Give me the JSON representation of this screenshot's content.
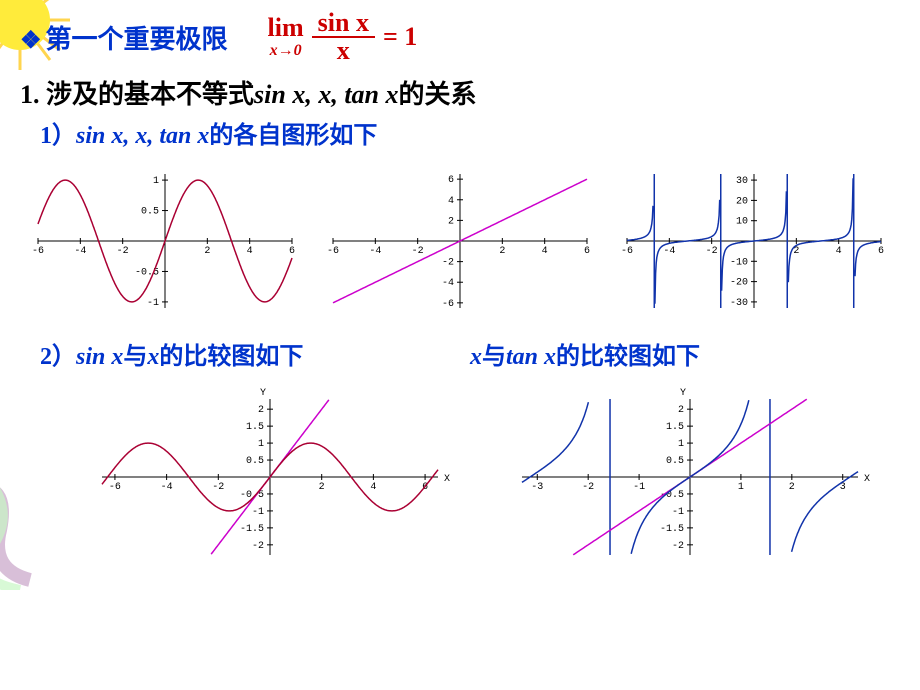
{
  "header": {
    "bullet": "❖",
    "title": "第一个重要极限",
    "formula": {
      "lim": "lim",
      "sub": "x→0",
      "num": "sin x",
      "den": "x",
      "eq": "= 1"
    }
  },
  "sec1": {
    "prefix": "1. 涉及的基本不等式",
    "mid": "sin x, x, tan x",
    "suffix": "的关系"
  },
  "sub1": {
    "prefix": "1）",
    "mid": "sin x, x, tan x",
    "suffix": "的各自图形如下"
  },
  "sub2a": {
    "prefix": "2）",
    "a": "sin x",
    "mid1": "与",
    "b": "x",
    "suffix": "的比较图如下"
  },
  "sub2b": {
    "a": "x",
    "mid1": "与",
    "b": "tan x",
    "suffix": "的比较图如下"
  },
  "charts": {
    "sin": {
      "type": "line",
      "xlim": [
        -6,
        6
      ],
      "ylim": [
        -1.1,
        1.1
      ],
      "xticks": [
        -6,
        -4,
        -2,
        2,
        4,
        6
      ],
      "yticks": [
        -1,
        -0.5,
        0.5,
        1
      ],
      "series_color": "#aa0033",
      "background": "#ffffff"
    },
    "identity": {
      "type": "line",
      "xlim": [
        -6,
        6
      ],
      "ylim": [
        -6.5,
        6.5
      ],
      "xticks": [
        -6,
        -4,
        -2,
        2,
        4,
        6
      ],
      "yticks": [
        -6,
        -4,
        -2,
        2,
        4,
        6
      ],
      "series_color": "#cc00cc",
      "background": "#ffffff"
    },
    "tan": {
      "type": "line",
      "xlim": [
        -6,
        6
      ],
      "ylim": [
        -33,
        33
      ],
      "xticks": [
        -6,
        -4,
        -2,
        2,
        4,
        6
      ],
      "yticks": [
        -30,
        -20,
        -10,
        10,
        20,
        30
      ],
      "series_color": "#1133aa",
      "asymptotes_x": [
        -4.712,
        -1.571,
        1.571,
        4.712
      ],
      "background": "#ffffff"
    },
    "sin_vs_x": {
      "type": "multi-line",
      "xlim": [
        -6.5,
        6.5
      ],
      "ylim": [
        -2.3,
        2.3
      ],
      "xticks": [
        -6,
        -4,
        -2,
        2,
        4,
        6
      ],
      "yticks": [
        -2,
        -1.5,
        -1,
        -0.5,
        0.5,
        1,
        1.5,
        2
      ],
      "xlabel": "X",
      "ylabel": "Y",
      "series": [
        {
          "name": "x",
          "color": "#cc00cc"
        },
        {
          "name": "sin x",
          "color": "#aa0033"
        }
      ],
      "background": "#ffffff"
    },
    "x_vs_tan": {
      "type": "multi-line",
      "xlim": [
        -3.3,
        3.3
      ],
      "ylim": [
        -2.3,
        2.3
      ],
      "xticks": [
        -3,
        -2,
        -1,
        1,
        2,
        3
      ],
      "yticks": [
        -2,
        -1.5,
        -1,
        -0.5,
        0.5,
        1,
        1.5,
        2
      ],
      "xlabel": "X",
      "ylabel": "Y",
      "series": [
        {
          "name": "x",
          "color": "#cc00cc"
        },
        {
          "name": "tan x",
          "color": "#1133aa"
        }
      ],
      "asymptotes_x": [
        -1.571,
        1.571
      ],
      "background": "#ffffff"
    }
  },
  "decorations": {
    "sun_colors": [
      "#fff59d",
      "#ffeb3b",
      "#ffc107"
    ],
    "ribbon_colors": [
      "#d8bfd8",
      "#e6e6fa",
      "#c8f7c5"
    ]
  }
}
